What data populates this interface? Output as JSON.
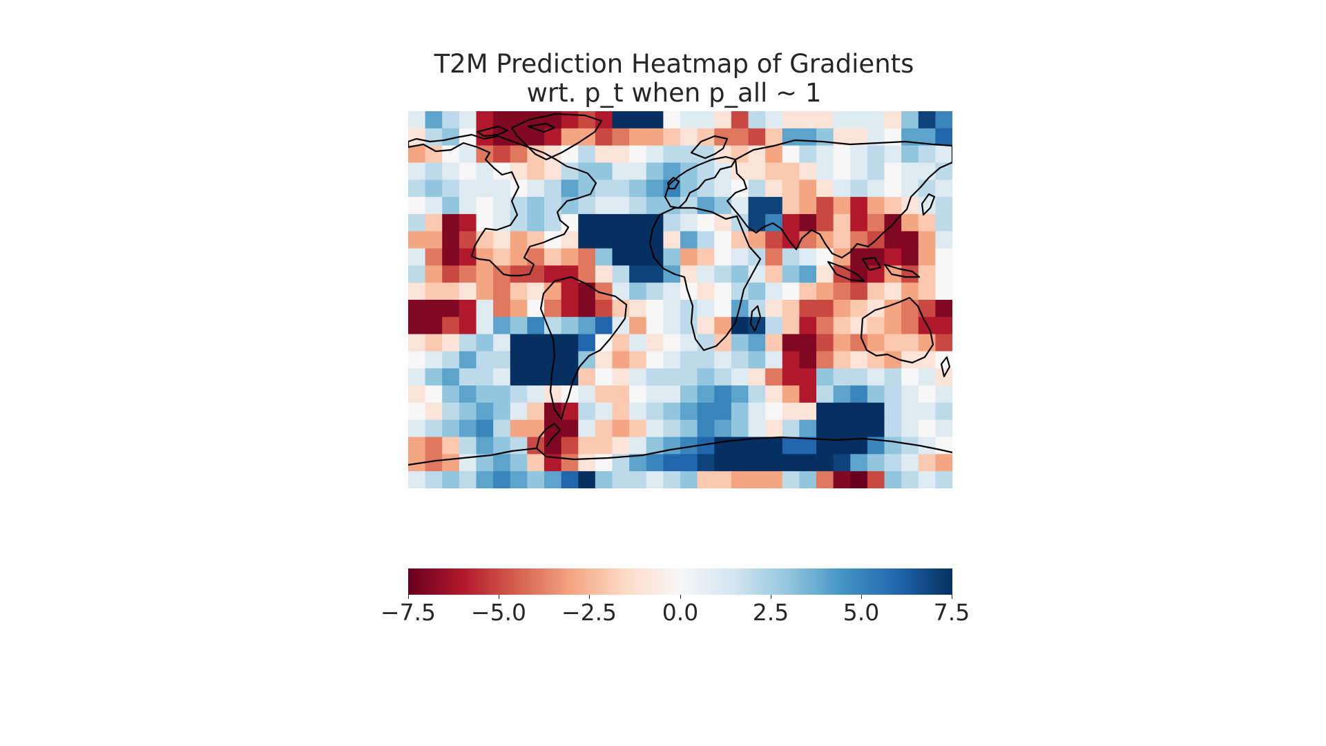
{
  "title": {
    "line1": "T2M Prediction Heatmap of Gradients",
    "line2": "wrt. p_t when p_all ~ 1"
  },
  "chart_data": {
    "type": "heatmap",
    "title": "T2M Prediction Heatmap of Gradients\nwrt. p_t when p_all ~ 1",
    "colormap": "RdBu",
    "vmin": -7.5,
    "vmax": 7.5,
    "colorbar": {
      "orientation": "horizontal",
      "placement": "bottom",
      "ticks": [
        -7.5,
        -5.0,
        -2.5,
        0.0,
        2.5,
        5.0,
        7.5
      ],
      "tick_labels": [
        "−7.5",
        "−5.0",
        "−2.5",
        "0.0",
        "2.5",
        "5.0",
        "7.5"
      ]
    },
    "grid": {
      "rows": 22,
      "cols": 32,
      "lat_range": [
        -90,
        90
      ],
      "lon_range": [
        -180,
        180
      ]
    },
    "overlay": "coastlines",
    "values": [
      [
        1,
        4,
        2,
        1,
        -6,
        -7,
        -7,
        -7,
        -7,
        -6,
        -5,
        -6,
        8,
        8,
        8,
        0,
        1,
        1,
        -1,
        -5,
        2,
        1,
        -1,
        -1,
        -1,
        1,
        1,
        1,
        -1,
        3,
        7,
        5
      ],
      [
        -1,
        2,
        3,
        0,
        -6,
        -7,
        -7,
        -7,
        -6,
        -3,
        -3,
        -5,
        -4,
        -3,
        -3,
        -2,
        -1,
        -2,
        -4,
        -4,
        -5,
        -2,
        4,
        4,
        3,
        -1,
        -1,
        1,
        0,
        4,
        4,
        6
      ],
      [
        -3,
        -2,
        0,
        1,
        -4,
        -5,
        -4,
        -2,
        -1,
        0,
        2,
        -1,
        -1,
        0,
        1,
        2,
        2,
        2,
        -1,
        -2,
        -1,
        -3,
        0,
        2,
        1,
        0,
        1,
        2,
        1,
        3,
        2,
        1
      ],
      [
        1,
        2,
        1,
        0,
        1,
        0,
        -1,
        -2,
        -1,
        2,
        3,
        3,
        1,
        1,
        3,
        4,
        3,
        2,
        1,
        -1,
        -1,
        -2,
        -2,
        -1,
        1,
        0,
        1,
        2,
        0,
        1,
        1,
        2
      ],
      [
        2,
        3,
        2,
        1,
        1,
        1,
        0,
        1,
        2,
        4,
        3,
        2,
        2,
        3,
        4,
        5,
        3,
        2,
        1,
        0,
        2,
        -1,
        -2,
        -3,
        -1,
        1,
        2,
        1,
        0,
        1,
        2,
        1
      ],
      [
        0,
        1,
        3,
        1,
        0,
        1,
        2,
        3,
        2,
        3,
        2,
        1,
        1,
        2,
        3,
        3,
        2,
        4,
        3,
        1,
        7,
        7,
        -2,
        -3,
        -5,
        -3,
        -6,
        -3,
        -2,
        -1,
        1,
        2
      ],
      [
        2,
        -2,
        -7,
        -6,
        0,
        1,
        2,
        3,
        2,
        0,
        8,
        8,
        8,
        8,
        8,
        2,
        1,
        0,
        -1,
        2,
        7,
        5,
        -6,
        -7,
        -5,
        -2,
        -6,
        -4,
        -7,
        -3,
        -2,
        2
      ],
      [
        -3,
        -3,
        -7,
        -5,
        -2,
        -1,
        -3,
        -2,
        0,
        -1,
        8,
        8,
        8,
        8,
        8,
        -1,
        4,
        2,
        0,
        -2,
        -3,
        -5,
        -6,
        -4,
        -3,
        -2,
        -4,
        -5,
        -7,
        -7,
        -3,
        1
      ],
      [
        1,
        -4,
        -7,
        -6,
        -3,
        -2,
        -3,
        -4,
        -2,
        -3,
        -4,
        3,
        8,
        8,
        8,
        3,
        -3,
        -2,
        0,
        1,
        2,
        -4,
        2,
        1,
        0,
        -3,
        -7,
        -7,
        -6,
        -7,
        -3,
        0
      ],
      [
        2,
        -3,
        -5,
        -4,
        -3,
        -4,
        -5,
        -5,
        -6,
        -6,
        -4,
        -1,
        2,
        7,
        7,
        4,
        -1,
        1,
        2,
        3,
        1,
        -2,
        3,
        4,
        -1,
        -5,
        -7,
        -6,
        -3,
        -5,
        -2,
        0
      ],
      [
        -1,
        -2,
        -2,
        -1,
        -3,
        -4,
        -2,
        -1,
        -3,
        -6,
        -7,
        -4,
        1,
        3,
        2,
        1,
        0,
        -1,
        0,
        2,
        3,
        1,
        0,
        -2,
        -3,
        -4,
        -5,
        -2,
        -1,
        -3,
        -2,
        0
      ],
      [
        -7,
        -7,
        -7,
        -6,
        1,
        -4,
        -3,
        0,
        -4,
        -6,
        -7,
        -5,
        -2,
        -1,
        0,
        1,
        2,
        1,
        0,
        4,
        2,
        -1,
        -2,
        -5,
        -5,
        -3,
        -2,
        -1,
        -3,
        -4,
        -5,
        -7
      ],
      [
        -7,
        -7,
        -5,
        -6,
        1,
        4,
        3,
        5,
        2,
        3,
        4,
        6,
        1,
        -3,
        0,
        1,
        2,
        -1,
        -3,
        8,
        7,
        2,
        -2,
        -6,
        -4,
        -2,
        -1,
        -2,
        -3,
        -4,
        -6,
        -6
      ],
      [
        -1,
        -2,
        -1,
        2,
        3,
        1,
        8,
        8,
        8,
        8,
        6,
        0,
        -2,
        1,
        -1,
        0,
        1,
        2,
        -2,
        3,
        4,
        -2,
        -7,
        -7,
        -5,
        -3,
        -4,
        -3,
        -2,
        -2,
        -3,
        -5
      ],
      [
        0,
        1,
        2,
        4,
        2,
        2,
        8,
        8,
        8,
        8,
        3,
        -1,
        -3,
        -2,
        0,
        1,
        2,
        2,
        1,
        2,
        3,
        1,
        -6,
        -7,
        -4,
        -2,
        -1,
        -2,
        -3,
        -1,
        -1,
        0
      ],
      [
        1,
        3,
        4,
        2,
        2,
        1,
        8,
        8,
        8,
        8,
        -2,
        0,
        -1,
        1,
        2,
        2,
        2,
        3,
        2,
        1,
        -1,
        -4,
        -6,
        -6,
        3,
        2,
        2,
        1,
        2,
        0,
        1,
        -1
      ],
      [
        -1,
        0,
        3,
        4,
        3,
        3,
        2,
        1,
        -1,
        0,
        1,
        -2,
        -2,
        0,
        1,
        1,
        3,
        4,
        5,
        4,
        2,
        -1,
        -3,
        -6,
        2,
        4,
        5,
        3,
        2,
        1,
        0,
        1
      ],
      [
        0,
        -1,
        2,
        3,
        4,
        3,
        1,
        -2,
        -7,
        -6,
        2,
        1,
        -2,
        1,
        2,
        3,
        4,
        5,
        5,
        3,
        1,
        0,
        -1,
        -1,
        8,
        8,
        8,
        8,
        2,
        1,
        1,
        2
      ],
      [
        1,
        2,
        3,
        4,
        5,
        2,
        -3,
        -3,
        -7,
        -7,
        1,
        -2,
        -3,
        -2,
        1,
        2,
        3,
        5,
        4,
        3,
        1,
        -1,
        2,
        4,
        8,
        8,
        8,
        8,
        2,
        1,
        0,
        1
      ],
      [
        -3,
        -4,
        -2,
        2,
        4,
        3,
        2,
        -5,
        -7,
        -5,
        -2,
        -2,
        -1,
        1,
        3,
        4,
        5,
        6,
        8,
        8,
        8,
        8,
        6,
        6,
        8,
        8,
        8,
        5,
        3,
        2,
        1,
        0
      ],
      [
        -3,
        -4,
        -3,
        1,
        3,
        4,
        3,
        -2,
        -6,
        -4,
        -1,
        0,
        2,
        4,
        5,
        6,
        6,
        7,
        8,
        8,
        8,
        8,
        8,
        8,
        8,
        7,
        4,
        3,
        2,
        1,
        -2,
        -3
      ],
      [
        1,
        2,
        3,
        2,
        4,
        5,
        4,
        3,
        4,
        6,
        8,
        3,
        2,
        2,
        1,
        2,
        3,
        -2,
        -2,
        -3,
        -3,
        -3,
        2,
        3,
        -4,
        -7,
        -8,
        -5,
        3,
        2,
        1,
        2
      ]
    ]
  }
}
